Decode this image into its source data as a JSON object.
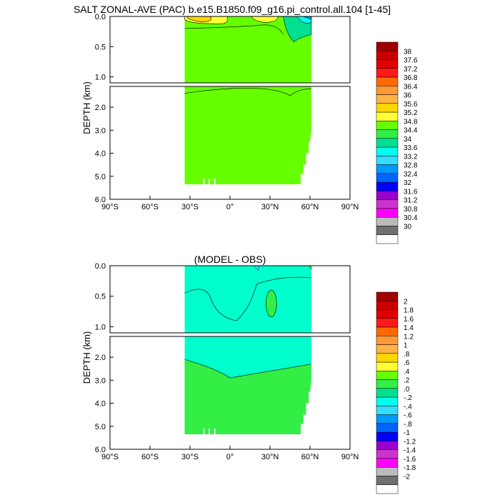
{
  "chart_data": [
    {
      "type": "heatmap",
      "title": "SALT ZONAL-AVE (PAC) b.e15.B1850.f09_g16.pi_control.all.104 [1-45]",
      "ylabel": "DEPTH (km)",
      "xlim": [
        -90,
        90
      ],
      "ylim_upper_km": [
        0,
        1.1
      ],
      "ylim_lower_km": [
        1.1,
        6.0
      ],
      "x_ticks": [
        "90°S",
        "60°S",
        "30°S",
        "0°",
        "30°N",
        "60°N",
        "90°N"
      ],
      "y_ticks_upper": [
        "0.0",
        "0.5",
        "1.0"
      ],
      "y_ticks_lower": [
        "2.0",
        "3.0",
        "4.0",
        "5.0",
        "6.0"
      ],
      "colorbar": {
        "labels": [
          "38",
          "37.6",
          "37.2",
          "36.8",
          "36.4",
          "36",
          "35.6",
          "35.2",
          "34.8",
          "34.4",
          "34",
          "33.6",
          "33.2",
          "32.8",
          "32.4",
          "32",
          "31.6",
          "31.2",
          "30.8",
          "30.4",
          "30"
        ],
        "colors": [
          "#a00000",
          "#c80000",
          "#e00000",
          "#ff1a1a",
          "#ff6a00",
          "#ff9933",
          "#ffb347",
          "#ffd700",
          "#ffff33",
          "#66ff00",
          "#33ee44",
          "#00e090",
          "#00ffee",
          "#33ddff",
          "#0099ff",
          "#0066ff",
          "#0000ff",
          "#9900cc",
          "#cc33cc",
          "#ff00ff",
          "#bbbbbb",
          "#707070",
          "#ffffff"
        ]
      },
      "fill_color": "#66ff00"
    },
    {
      "type": "heatmap",
      "title": "(MODEL - OBS)",
      "ylabel": "DEPTH (km)",
      "xlim": [
        -90,
        90
      ],
      "ylim_upper_km": [
        0,
        1.1
      ],
      "ylim_lower_km": [
        1.1,
        6.0
      ],
      "x_ticks": [
        "90°S",
        "60°S",
        "30°S",
        "0°",
        "30°N",
        "60°N",
        "90°N"
      ],
      "y_ticks_upper": [
        "0.0",
        "0.5",
        "1.0"
      ],
      "y_ticks_lower": [
        "2.0",
        "3.0",
        "4.0",
        "5.0",
        "6.0"
      ],
      "colorbar": {
        "labels": [
          "2",
          "1.8",
          "1.6",
          "1.4",
          "1.2",
          "1",
          ".8",
          ".6",
          ".4",
          ".2",
          ".0",
          "-.2",
          "-.4",
          "-.6",
          "-.8",
          "-1",
          "-1.2",
          "-1.4",
          "-1.6",
          "-1.8",
          "-2"
        ],
        "colors": [
          "#a00000",
          "#c80000",
          "#e00000",
          "#ff1a1a",
          "#ff6a00",
          "#ff9933",
          "#ffb347",
          "#ffd700",
          "#ffff33",
          "#66ff00",
          "#33ee44",
          "#00e090",
          "#00ffee",
          "#33ddff",
          "#0099ff",
          "#0066ff",
          "#0000ff",
          "#9900cc",
          "#cc33cc",
          "#ff00ff",
          "#bbbbbb",
          "#707070",
          "#ffffff"
        ]
      },
      "fill_color": "#00ffcc"
    }
  ]
}
